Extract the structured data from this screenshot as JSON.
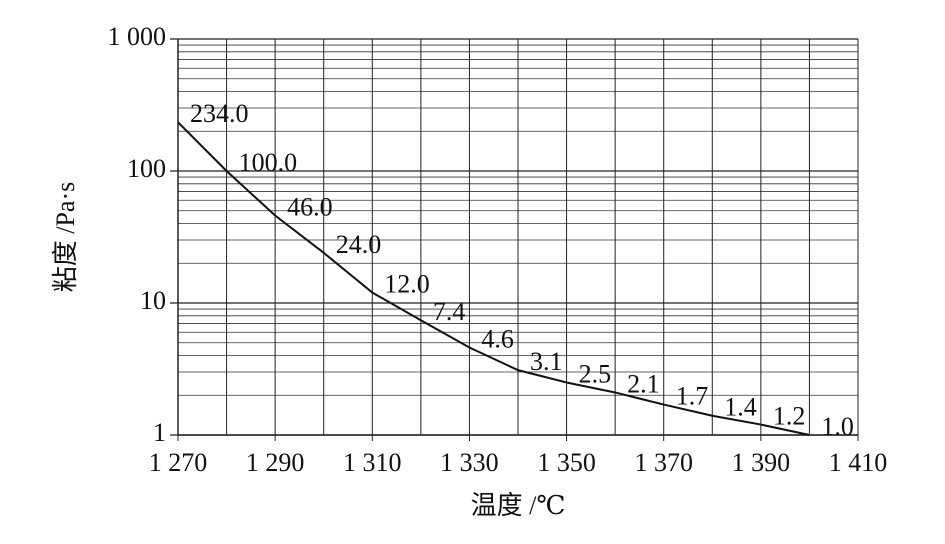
{
  "chart_data": {
    "type": "line",
    "log_y": true,
    "grid": true,
    "color": "#111111",
    "x_label": "温度 /℃",
    "y_label": "粘度 /Pa·s",
    "x": [
      1270,
      1280,
      1290,
      1300,
      1310,
      1320,
      1330,
      1340,
      1350,
      1360,
      1370,
      1380,
      1390,
      1400
    ],
    "values": [
      234,
      100,
      46,
      24,
      12,
      7.4,
      4.6,
      3.1,
      2.5,
      2.1,
      1.7,
      1.4,
      1.2,
      1
    ],
    "value_labels": [
      "234.0",
      "100.0",
      "46.0",
      "24.0",
      "12.0",
      "7.4",
      "4.6",
      "3.1",
      "2.5",
      "2.1",
      "1.7",
      "1.4",
      "1.2",
      "1.0"
    ],
    "xlim": [
      1270,
      1410
    ],
    "xticks": [
      {
        "value": 1270,
        "label": "1 270"
      },
      {
        "value": 1290,
        "label": "1 290"
      },
      {
        "value": 1310,
        "label": "1 310"
      },
      {
        "value": 1330,
        "label": "1 330"
      },
      {
        "value": 1350,
        "label": "1 350"
      },
      {
        "value": 1370,
        "label": "1 370"
      },
      {
        "value": 1390,
        "label": "1 390"
      },
      {
        "value": 1410,
        "label": "1 410"
      }
    ],
    "ylim": [
      1,
      1000
    ],
    "yticks": [
      1,
      10,
      100,
      {
        "value": 1000,
        "label": "1 000"
      }
    ]
  }
}
